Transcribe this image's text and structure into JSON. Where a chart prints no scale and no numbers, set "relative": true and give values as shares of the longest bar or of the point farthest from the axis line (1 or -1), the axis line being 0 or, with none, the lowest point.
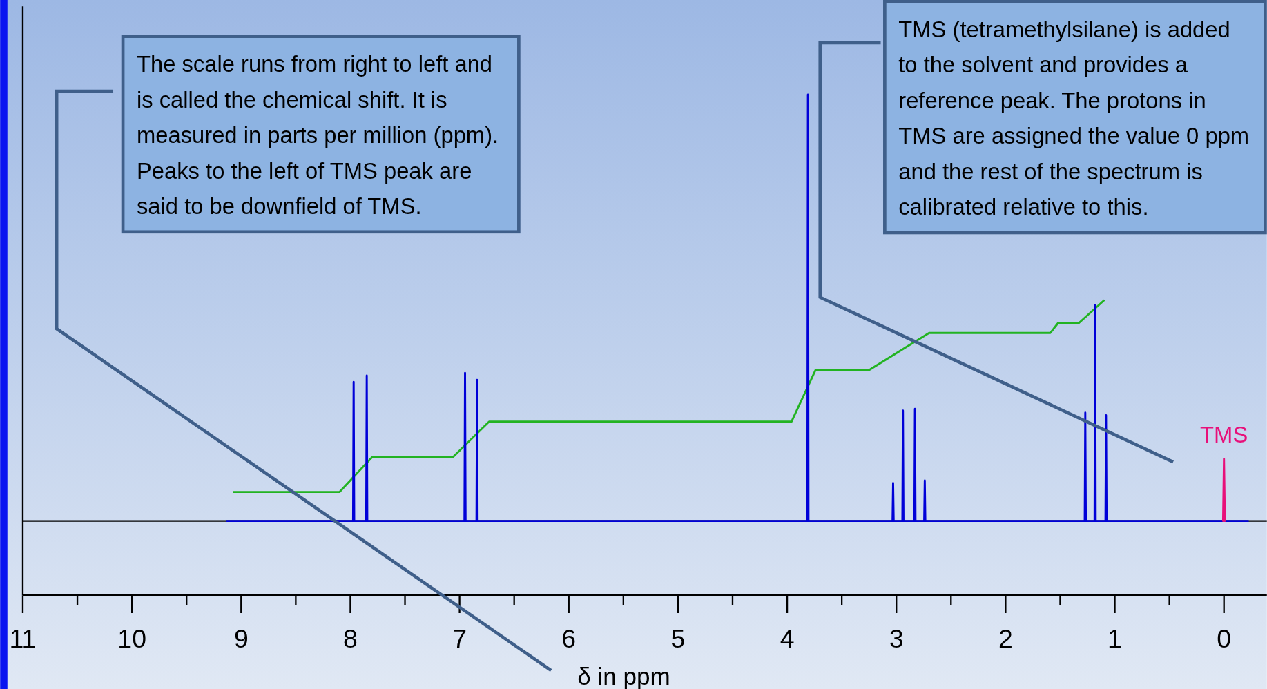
{
  "chart_data": {
    "type": "line",
    "relative": true,
    "xlabel": "δ in ppm",
    "xlim": [
      11,
      -0.4
    ],
    "xticks": [
      11,
      10,
      9,
      8,
      7,
      6,
      5,
      4,
      3,
      2,
      1,
      0
    ],
    "series": [
      {
        "color": "#22b322",
        "x": [
          9.07,
          8.1,
          7.8,
          7.06,
          6.73,
          3.96,
          3.74,
          3.25,
          2.7,
          1.59,
          1.52,
          1.33,
          1.1
        ],
        "values": [
          0.068,
          0.068,
          0.15,
          0.15,
          0.233,
          0.233,
          0.354,
          0.354,
          0.441,
          0.441,
          0.464,
          0.464,
          0.517
        ]
      },
      {
        "color": "#0000d8",
        "x": [
          9.13,
          7.975,
          7.97,
          7.965,
          7.855,
          7.85,
          7.845,
          6.955,
          6.95,
          6.945,
          6.845,
          6.84,
          6.835,
          3.815,
          3.81,
          3.805,
          3.035,
          3.03,
          3.025,
          2.945,
          2.94,
          2.935,
          2.835,
          2.83,
          2.825,
          2.745,
          2.74,
          2.735,
          1.275,
          1.27,
          1.265,
          1.185,
          1.18,
          1.175,
          1.085,
          1.08,
          1.075,
          -0.22
        ],
        "values": [
          0,
          0,
          0.326,
          0,
          0,
          0.341,
          0,
          0,
          0.347,
          0,
          0,
          0.331,
          0,
          0,
          1,
          0,
          0,
          0.089,
          0,
          0,
          0.259,
          0,
          0,
          0.263,
          0,
          0,
          0.095,
          0,
          0,
          0.254,
          0,
          0,
          0.506,
          0,
          0,
          0.248,
          0,
          0
        ]
      },
      {
        "name": "TMS",
        "color": "#e8107a",
        "x": [
          0.008,
          0,
          -0.008
        ],
        "values": [
          0,
          0.146,
          0
        ]
      }
    ],
    "annotations": [
      "The scale runs from right to left and is called the chemical shift. It is measured in parts per million (ppm). Peaks to the left of TMS peak are said to be downfield of TMS.",
      "TMS (tetramethylsilane) is added to the solvent and provides a reference peak. The protons in TMS are assigned the value 0 ppm and the rest of the spectrum is calibrated relative to this."
    ]
  }
}
